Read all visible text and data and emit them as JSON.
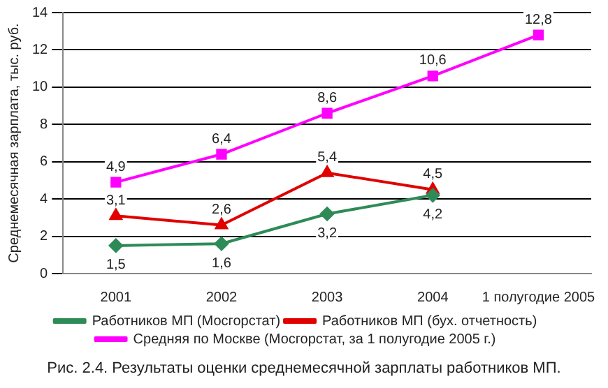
{
  "chart_data": {
    "type": "line",
    "ylabel": "Среднемесячная зарплата, тыс. руб.",
    "categories": [
      "2001",
      "2002",
      "2003",
      "2004",
      "1 полугодие 2005"
    ],
    "series": [
      {
        "name": "Работников МП (Мосгорстат)",
        "color": "#2e8b57",
        "marker": "diamond",
        "values": [
          1.5,
          1.6,
          3.2,
          4.2,
          null
        ],
        "value_labels": [
          "1,5",
          "1,6",
          "3,2",
          "4,2",
          null
        ]
      },
      {
        "name": "Работников МП (бух. отчетность)",
        "color": "#e00000",
        "marker": "triangle",
        "values": [
          3.1,
          2.6,
          5.4,
          4.5,
          null
        ],
        "value_labels": [
          "3,1",
          "2,6",
          "5,4",
          "4,5",
          null
        ]
      },
      {
        "name": "Средняя по Москве (Мосгорстат, за 1 полугодие 2005 г.)",
        "color": "#ff00ff",
        "marker": "square",
        "values": [
          4.9,
          6.4,
          8.6,
          10.6,
          12.8
        ],
        "value_labels": [
          "4,9",
          "6,4",
          "8,6",
          "10,6",
          "12,8"
        ]
      }
    ],
    "ylim": [
      0,
      14
    ],
    "yticks": [
      0,
      2,
      4,
      6,
      8,
      10,
      12,
      14
    ],
    "grid": "y",
    "legend": "bottom",
    "annotations": [
      "Рис. 2.4. Результаты оценки среднемесячной зарплаты работников МП."
    ]
  }
}
